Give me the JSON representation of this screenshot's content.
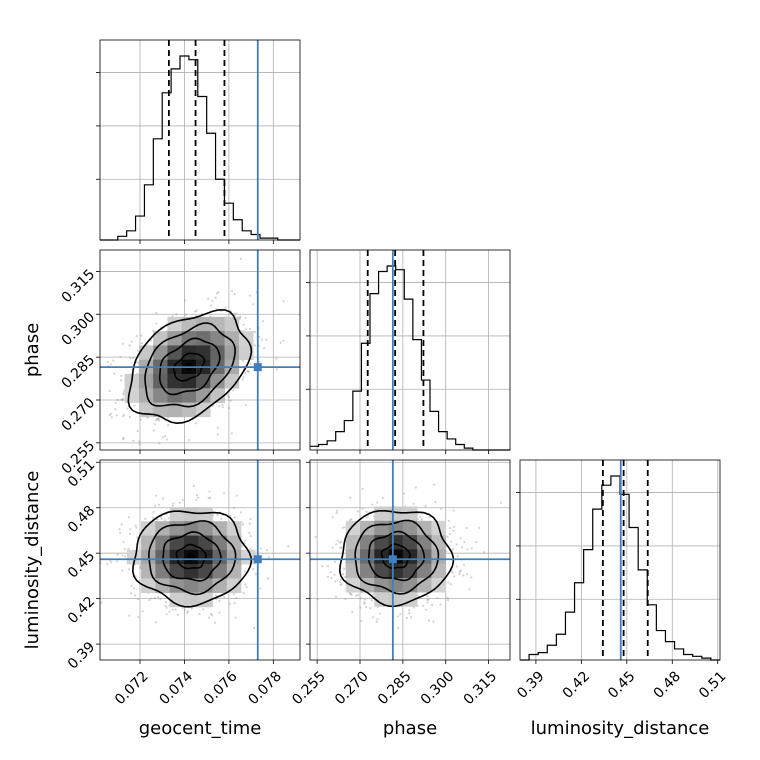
{
  "chart_data": [
    {
      "type": "corner",
      "parameters": [
        "geocent_time",
        "phase",
        "luminosity_distance"
      ],
      "xlabels": [
        "geocent_time",
        "phase",
        "luminosity_distance"
      ],
      "ylabels": [
        "",
        "phase",
        "luminosity_distance"
      ],
      "ranges": {
        "geocent_time": [
          0.0702,
          0.0792
        ],
        "phase": [
          0.2525,
          0.3225
        ],
        "luminosity_distance": [
          0.3795,
          0.5115
        ]
      },
      "ticks": {
        "geocent_time": [
          "0.072",
          "0.074",
          "0.076",
          "0.078"
        ],
        "phase": [
          "0.255",
          "0.270",
          "0.285",
          "0.300",
          "0.315"
        ],
        "luminosity_distance": [
          "0.39",
          "0.42",
          "0.45",
          "0.48",
          "0.51"
        ]
      },
      "truths": {
        "geocent_time": 0.0773,
        "phase": 0.2815,
        "luminosity_distance": 0.446
      },
      "quantiles": {
        "geocent_time": [
          0.0733,
          0.0745,
          0.0758
        ],
        "phase": [
          0.2727,
          0.2823,
          0.2922
        ],
        "luminosity_distance": [
          0.4342,
          0.4479,
          0.4638
        ]
      },
      "histograms": {
        "geocent_time": {
          "bin_edges": [
            0.0702,
            0.0706,
            0.071,
            0.0714,
            0.0718,
            0.0722,
            0.0726,
            0.073,
            0.0734,
            0.0738,
            0.0742,
            0.0746,
            0.075,
            0.0754,
            0.0758,
            0.0762,
            0.0766,
            0.077,
            0.0774,
            0.0778,
            0.0782,
            0.0786,
            0.0792
          ],
          "counts": [
            0.0,
            0.0,
            0.02,
            0.05,
            0.13,
            0.3,
            0.55,
            0.8,
            0.93,
            1.0,
            0.98,
            0.78,
            0.58,
            0.33,
            0.2,
            0.11,
            0.05,
            0.03,
            0.01,
            0.01,
            0.0,
            0.0
          ]
        },
        "phase": {
          "bin_edges": [
            0.2525,
            0.2555,
            0.2585,
            0.2615,
            0.2645,
            0.2675,
            0.2705,
            0.2735,
            0.2765,
            0.2795,
            0.2825,
            0.2855,
            0.2885,
            0.2915,
            0.2945,
            0.2975,
            0.3005,
            0.3035,
            0.3065,
            0.3095,
            0.3125,
            0.3155,
            0.3225
          ],
          "counts": [
            0.02,
            0.03,
            0.05,
            0.1,
            0.16,
            0.32,
            0.58,
            0.85,
            0.97,
            1.0,
            0.98,
            0.82,
            0.6,
            0.38,
            0.21,
            0.1,
            0.06,
            0.03,
            0.01,
            0.0,
            0.0,
            0.0
          ]
        },
        "luminosity_distance": {
          "bin_edges": [
            0.3795,
            0.3855,
            0.3915,
            0.3975,
            0.4035,
            0.4095,
            0.4155,
            0.4215,
            0.4275,
            0.4335,
            0.4395,
            0.4455,
            0.4515,
            0.4575,
            0.4635,
            0.4695,
            0.4755,
            0.4815,
            0.4875,
            0.4935,
            0.4995,
            0.5055,
            0.5115
          ],
          "counts": [
            0.0,
            0.03,
            0.04,
            0.08,
            0.14,
            0.26,
            0.42,
            0.6,
            0.82,
            0.95,
            1.0,
            0.9,
            0.72,
            0.49,
            0.3,
            0.16,
            0.1,
            0.06,
            0.03,
            0.02,
            0.01,
            0.0
          ]
        }
      },
      "pairs": [
        {
          "x": "geocent_time",
          "y": "phase",
          "center": [
            0.0742,
            0.2816
          ],
          "sigma": [
            0.00135,
            0.0095
          ],
          "correlation": 0.35
        },
        {
          "x": "geocent_time",
          "y": "luminosity_distance",
          "center": [
            0.0743,
            0.4475
          ],
          "sigma": [
            0.0013,
            0.0155
          ],
          "correlation": 0.0
        },
        {
          "x": "phase",
          "y": "luminosity_distance",
          "center": [
            0.2825,
            0.4478
          ],
          "sigma": [
            0.0097,
            0.0155
          ],
          "correlation": 0.0
        }
      ],
      "colors": {
        "truth": "#3f7fbf",
        "hist": "#000000",
        "contour": "#000000",
        "points": "#808080"
      },
      "grid": true
    }
  ]
}
